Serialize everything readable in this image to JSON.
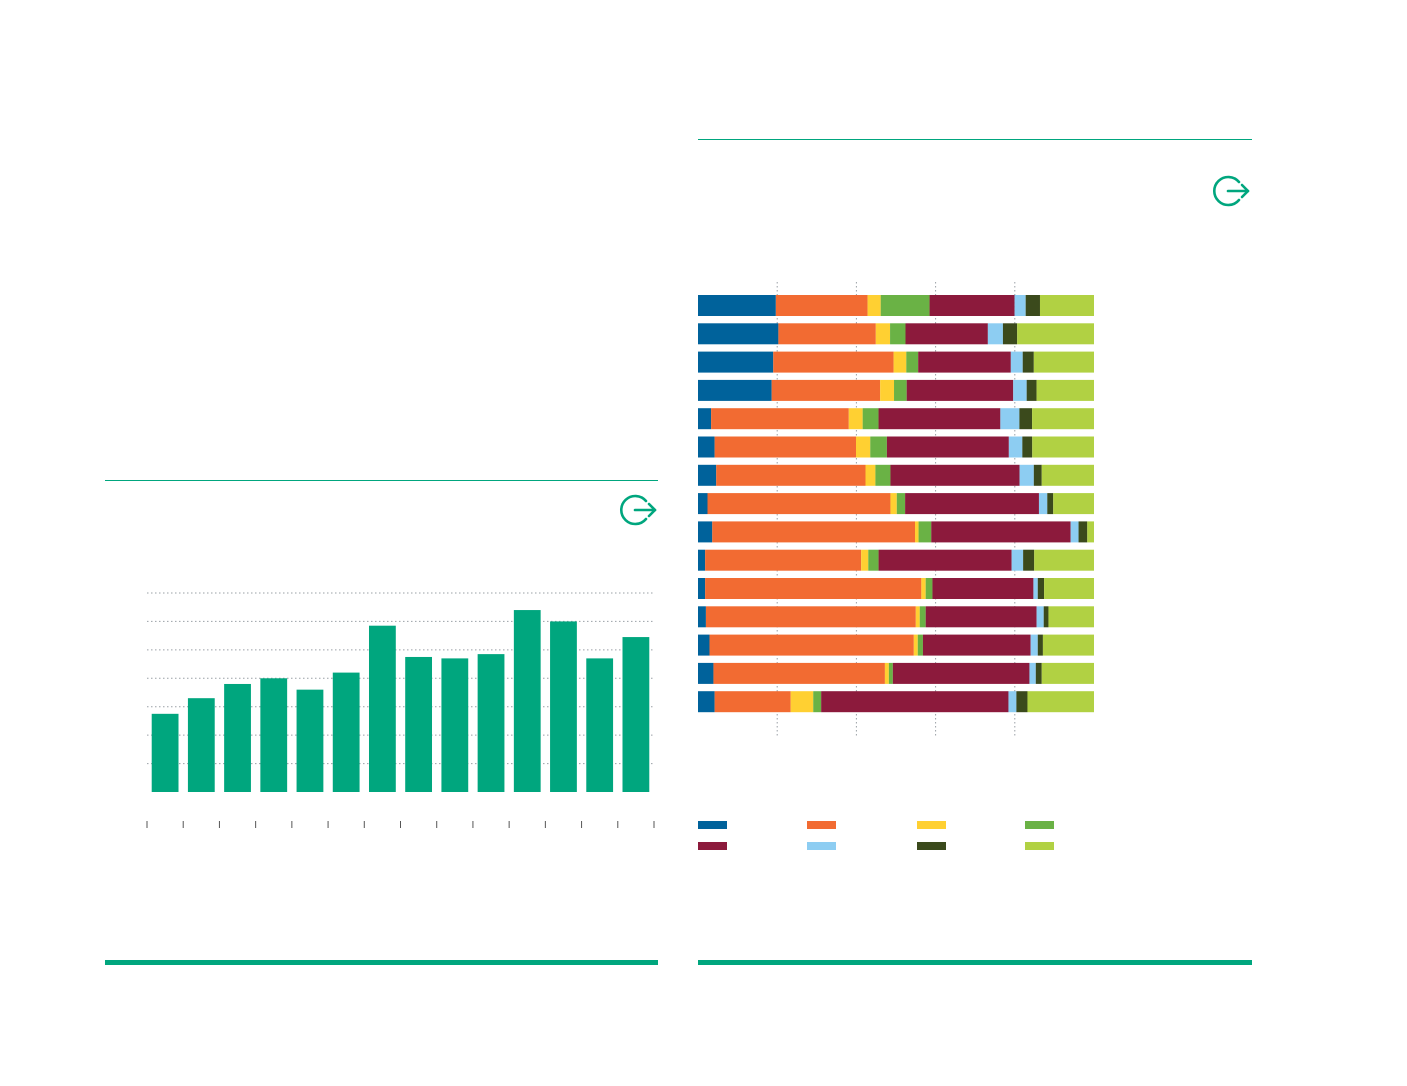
{
  "colors": {
    "accent": "#00a67e",
    "bar": "#00a67e",
    "grid": "#9aa0a6",
    "segments": [
      "#00629b",
      "#f26b32",
      "#ffd032",
      "#6ab245",
      "#8c1a3c",
      "#8dcdf2",
      "#3b4a1c",
      "#b1d143"
    ]
  },
  "icons": {
    "left_export": "export-icon",
    "right_export": "export-icon"
  },
  "chart_data": [
    {
      "type": "bar",
      "grid": true,
      "ylim": [
        0,
        7
      ],
      "categories": [
        "",
        "",
        "",
        "",
        "",
        "",
        "",
        "",
        "",
        "",
        "",
        "",
        "",
        ""
      ],
      "values": [
        2.75,
        3.3,
        3.8,
        4.0,
        3.6,
        4.2,
        5.85,
        4.75,
        4.7,
        4.85,
        6.4,
        6.0,
        4.7,
        5.45
      ]
    },
    {
      "type": "bar",
      "orientation": "horizontal",
      "stacked": true,
      "normalized": true,
      "grid": true,
      "legend_position": "bottom",
      "series": [
        {
          "values": [
            19.6,
            20.3,
            19.0,
            18.6,
            3.3,
            4.2,
            4.6,
            2.4,
            3.6,
            1.8,
            1.8,
            2.0,
            2.9,
            3.9,
            4.2
          ]
        },
        {
          "values": [
            23.1,
            24.6,
            30.4,
            27.4,
            34.7,
            35.7,
            37.7,
            46.2,
            51.2,
            39.4,
            54.6,
            53.0,
            51.6,
            43.3,
            19.2
          ]
        },
        {
          "values": [
            3.3,
            3.6,
            3.2,
            3.5,
            3.5,
            3.6,
            2.5,
            1.6,
            0.9,
            1.8,
            1.1,
            1.0,
            1.0,
            1.0,
            5.7
          ]
        },
        {
          "values": [
            12.3,
            3.9,
            3.0,
            3.2,
            4.0,
            4.2,
            3.8,
            2.1,
            3.2,
            2.6,
            1.7,
            1.5,
            1.3,
            1.0,
            2.0
          ]
        },
        {
          "values": [
            21.4,
            20.8,
            23.4,
            26.9,
            30.7,
            30.8,
            32.6,
            33.8,
            35.2,
            33.6,
            25.5,
            28.0,
            27.2,
            34.5,
            47.3
          ]
        },
        {
          "values": [
            2.8,
            3.8,
            3.0,
            3.4,
            4.8,
            3.4,
            3.6,
            2.1,
            2.0,
            2.9,
            1.1,
            1.8,
            1.8,
            1.6,
            2.0
          ]
        },
        {
          "values": [
            3.6,
            3.6,
            2.8,
            2.5,
            3.2,
            2.5,
            2.0,
            1.5,
            2.2,
            2.8,
            1.6,
            1.2,
            1.3,
            1.5,
            2.8
          ]
        },
        {
          "values": [
            13.6,
            19.4,
            15.2,
            14.5,
            15.6,
            15.6,
            13.2,
            10.3,
            1.7,
            15.1,
            12.6,
            11.5,
            12.9,
            13.2,
            16.8
          ]
        }
      ],
      "xlim": [
        0,
        100
      ],
      "ticks": [
        20,
        40,
        60,
        80
      ]
    }
  ]
}
